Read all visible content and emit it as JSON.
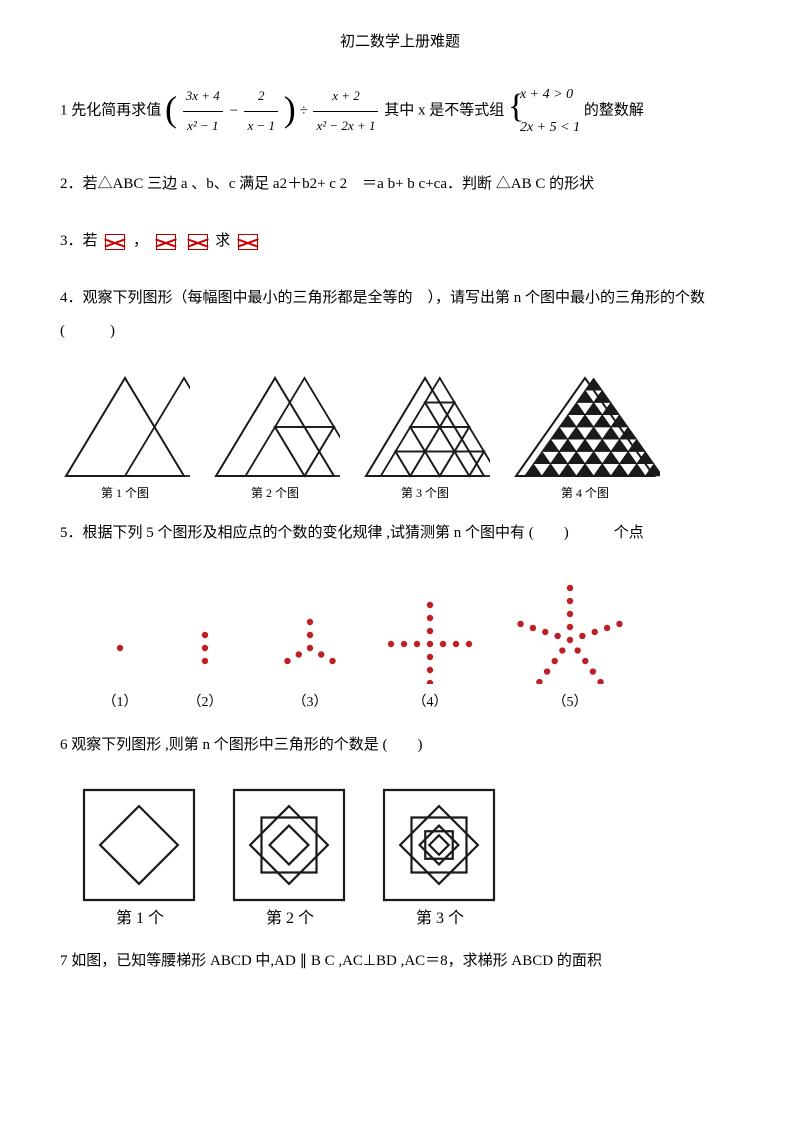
{
  "title": "初二数学上册难题",
  "p1": {
    "prefix": "1 先化简再求值",
    "frac1_num": "3x + 4",
    "frac1_den": "x² − 1",
    "frac2_num": "2",
    "frac2_den": "x − 1",
    "frac3_num": "x + 2",
    "frac3_den": "x² − 2x + 1",
    "mid": "其中 x 是不等式组",
    "sys1": "x + 4 > 0",
    "sys2": "2x + 5 < 1",
    "suffix": "的整数解"
  },
  "p2": "2．若△ABC 三边 a 、b、c 满足  a2＋b2+ c 2　＝a b+ b c+ca．判断 △AB C 的形状",
  "p3_a": "3．若",
  "p3_b": "，",
  "p3_c": "求",
  "p4": "4．观察下列图形（每幅图中最小的三角形都是全等的　），请写出第 n 个图中最小的三角形的个数 (　　　)",
  "p4_caps": [
    "第 1 个图",
    "第 2 个图",
    "第 3 个图",
    "第 4 个图"
  ],
  "p5": "5．根据下列 5 个图形及相应点的个数的变化规律 ,试猜测第 n 个图中有 (　　)　　　个点",
  "p5_caps": [
    "（1）",
    "（2）",
    "（3）",
    "（4）",
    "（5）"
  ],
  "p6": "6 观察下列图形 ,则第 n 个图形中三角形的个数是 (　　)",
  "p6_caps": [
    "第 1 个",
    "第 2 个",
    "第 3 个"
  ],
  "p7": "7 如图，已知等腰梯形  ABCD 中,AD ∥ B C ,AC⊥BD ,AC＝8，求梯形 ABCD 的面积",
  "colors": {
    "dot": "#bc2026",
    "line": "#1a1a1a",
    "bg": "#ffffff"
  },
  "triangle_levels": [
    1,
    2,
    3,
    4
  ],
  "dot_arms": [
    1,
    2,
    3,
    4,
    5
  ],
  "square_depth": [
    1,
    2,
    3
  ]
}
